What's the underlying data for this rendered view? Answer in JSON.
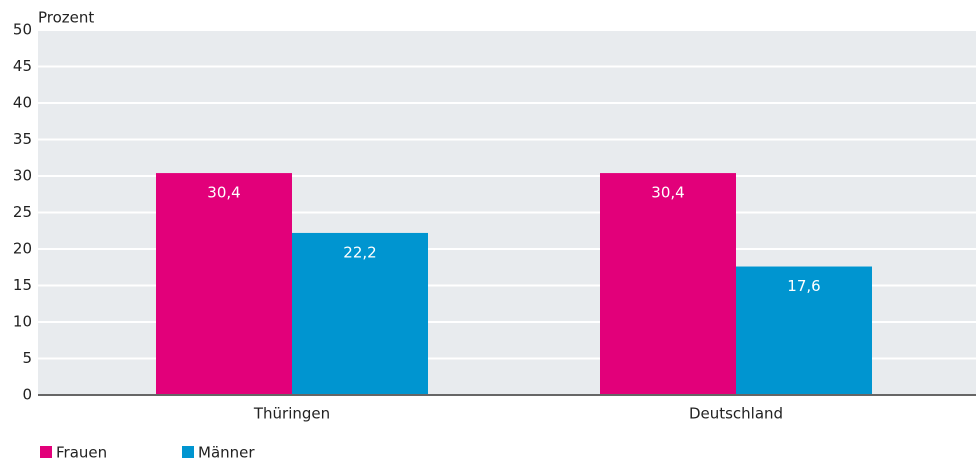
{
  "chart_data": {
    "type": "bar",
    "y_label": "Prozent",
    "categories": [
      "Thüringen",
      "Deutschland"
    ],
    "series": [
      {
        "name": "Frauen",
        "color": "#e2007a",
        "values": [
          30.4,
          30.4
        ],
        "value_labels": [
          "30,4",
          "30,4"
        ]
      },
      {
        "name": "Männer",
        "color": "#0095d0",
        "values": [
          22.2,
          17.6
        ],
        "value_labels": [
          "22,2",
          "17,6"
        ]
      }
    ],
    "ylim": [
      0,
      50
    ],
    "yticks": [
      0,
      5,
      10,
      15,
      20,
      25,
      30,
      35,
      40,
      45,
      50
    ],
    "grid": true,
    "legend": "bottom-left"
  }
}
